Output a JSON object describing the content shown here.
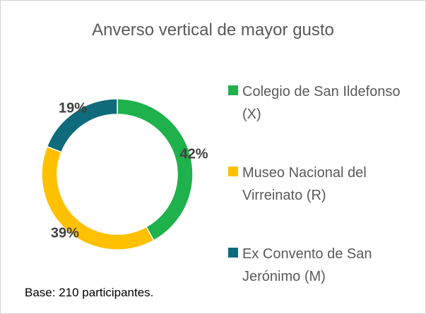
{
  "chart_data": {
    "type": "pie",
    "title": "Anverso vertical de mayor gusto",
    "categories": [
      "Colegio de San Ildefonso (X)",
      "Museo Nacional del Virreinato (R)",
      "Ex Convento de San Jerónimo (M)"
    ],
    "values": [
      42,
      39,
      19
    ],
    "value_labels": [
      "42%",
      "39%",
      "19%"
    ],
    "colors": [
      "#1fb14c",
      "#ffc000",
      "#0f6b7b"
    ],
    "note": "Base: 210 participantes."
  }
}
